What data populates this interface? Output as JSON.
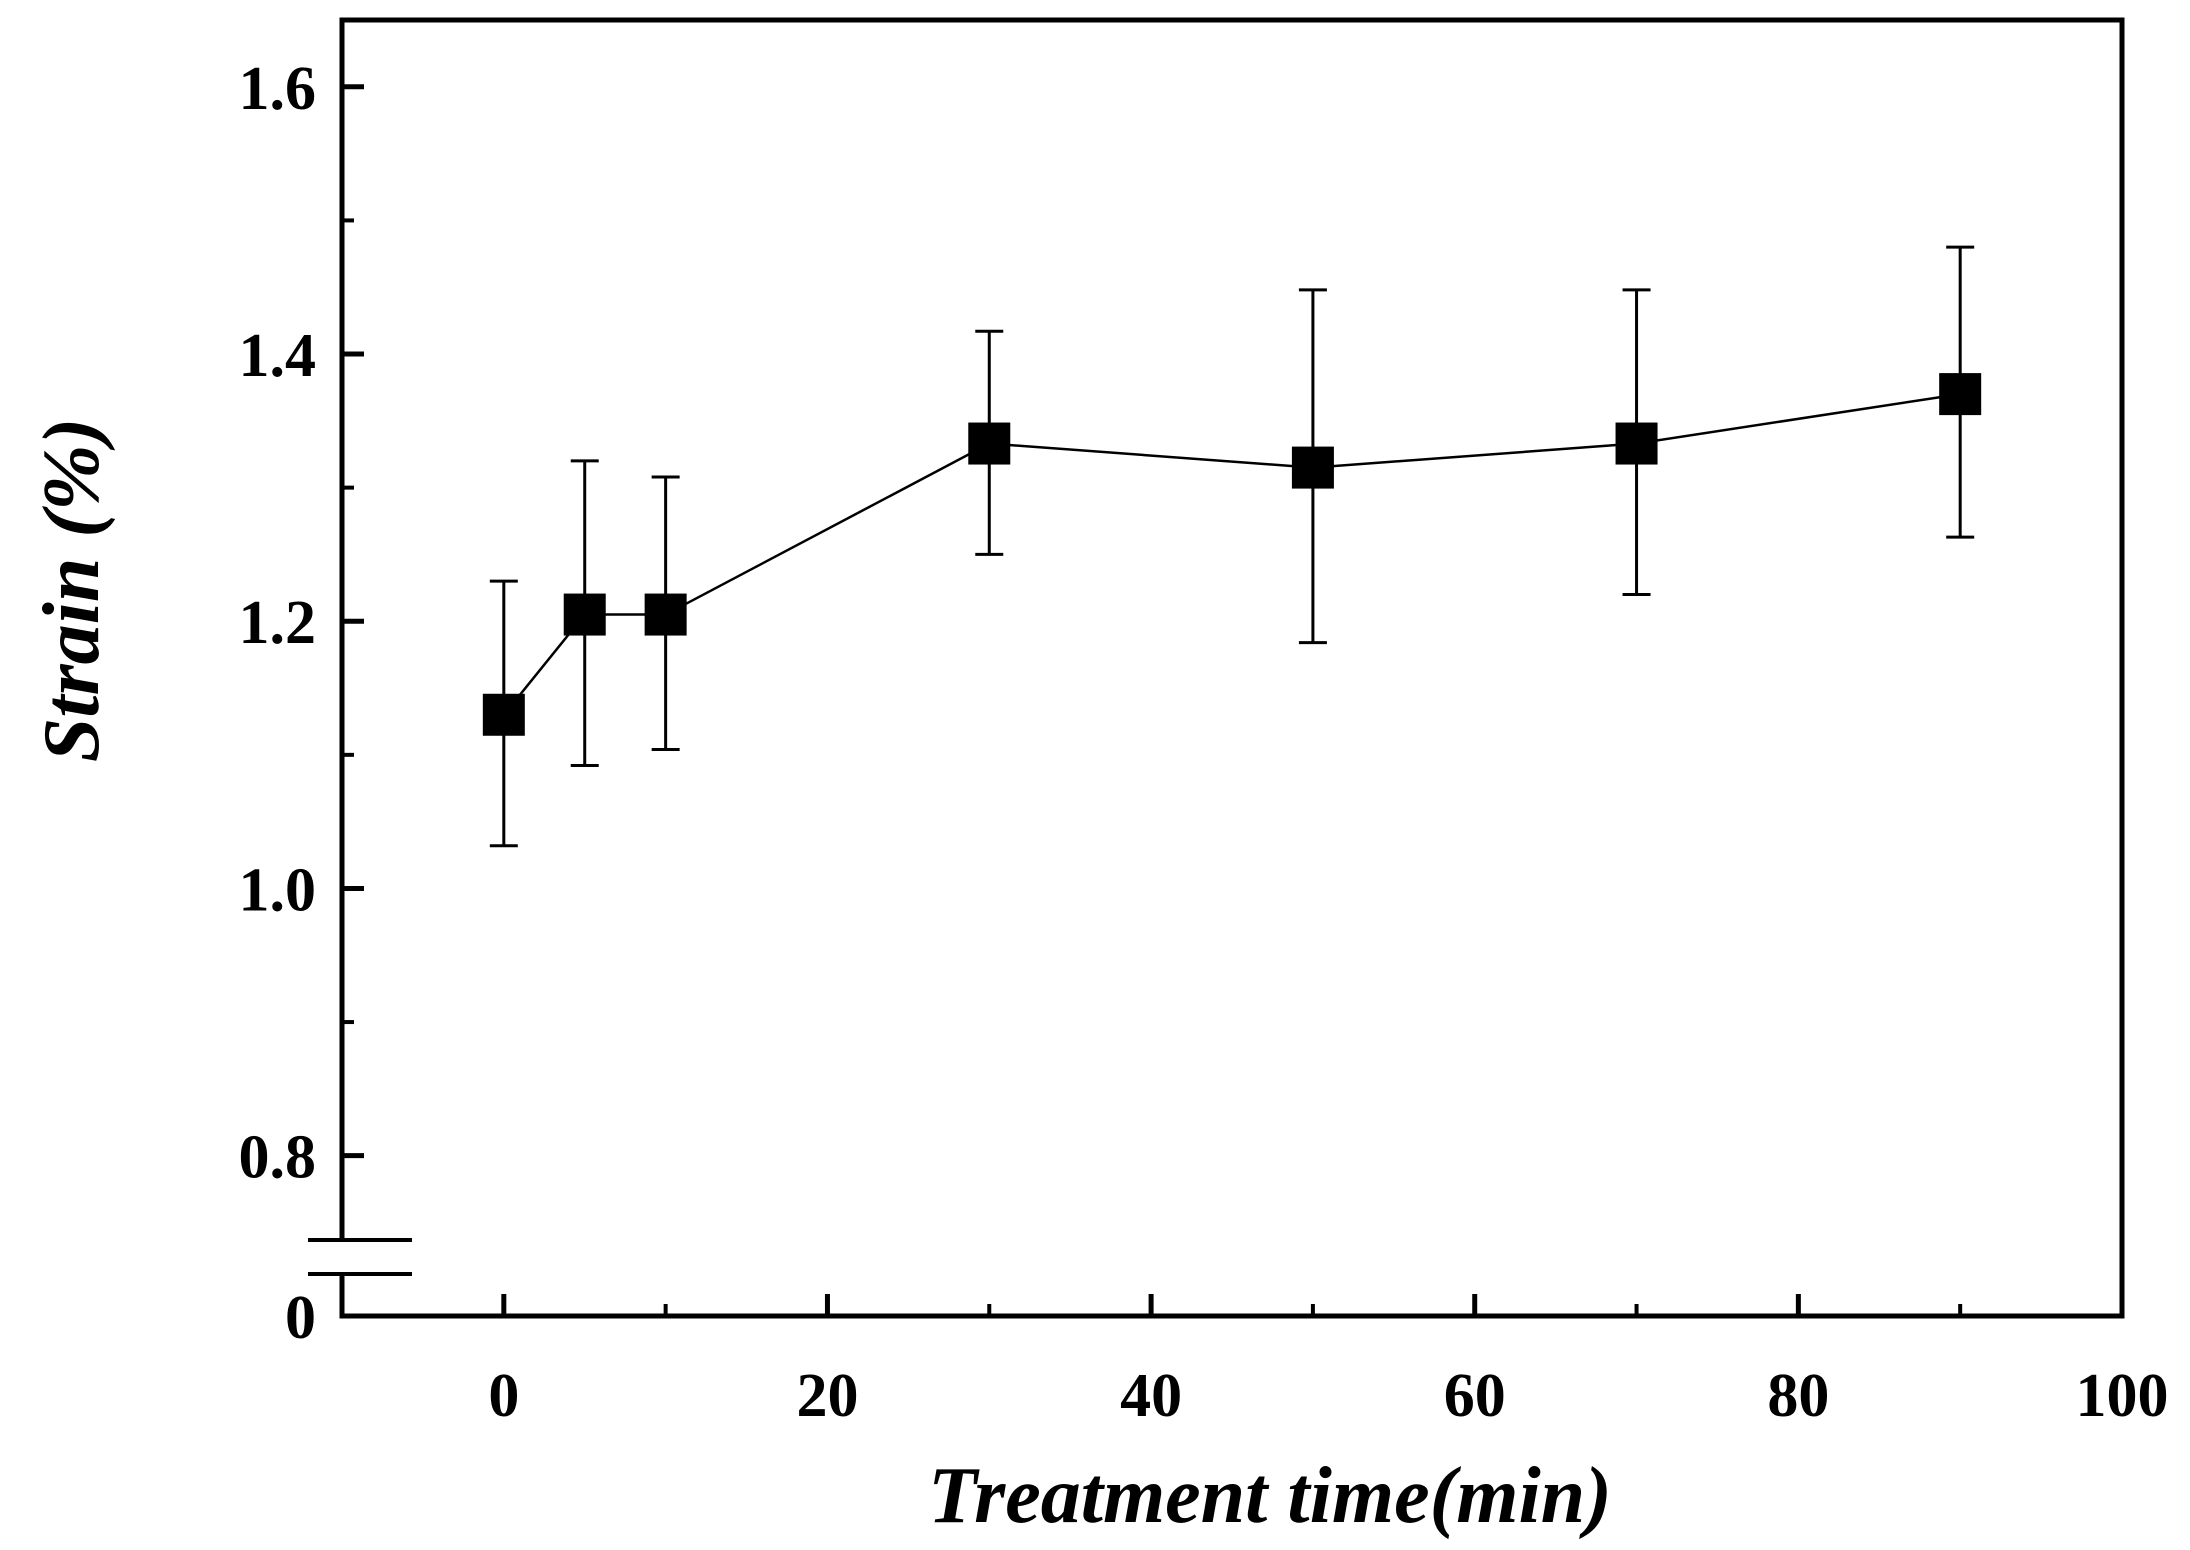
{
  "chart_data": {
    "type": "line",
    "title": "",
    "xlabel": "Treatment time(min)",
    "ylabel": "Strain (%)",
    "xlim": [
      -10,
      100
    ],
    "ylim": [
      0.68,
      1.65
    ],
    "axis_break": {
      "axis": "y",
      "below": 0.8,
      "bottom_label": "0"
    },
    "x_ticks": [
      0,
      20,
      40,
      60,
      80,
      100
    ],
    "x_tick_labels": [
      "0",
      "20",
      "40",
      "60",
      "80",
      "100"
    ],
    "y_ticks": [
      0.8,
      1.0,
      1.2,
      1.4,
      1.6
    ],
    "y_tick_labels": [
      "0.8",
      "1.0",
      "1.2",
      "1.4",
      "1.6"
    ],
    "y_minor_ticks": [
      0.9,
      1.1,
      1.3,
      1.5
    ],
    "x_minor_ticks": [
      -10,
      10,
      30,
      50,
      70,
      90
    ],
    "grid": false,
    "series": [
      {
        "name": "Strain",
        "marker": "square",
        "color": "#000000",
        "x": [
          0,
          5,
          10,
          30,
          50,
          70,
          90
        ],
        "values": [
          1.13,
          1.205,
          1.205,
          1.333,
          1.315,
          1.333,
          1.37
        ],
        "error_upper": [
          1.23,
          1.32,
          1.308,
          1.417,
          1.448,
          1.448,
          1.48
        ],
        "error_lower": [
          1.032,
          1.092,
          1.104,
          1.25,
          1.184,
          1.22,
          1.263
        ]
      }
    ]
  }
}
